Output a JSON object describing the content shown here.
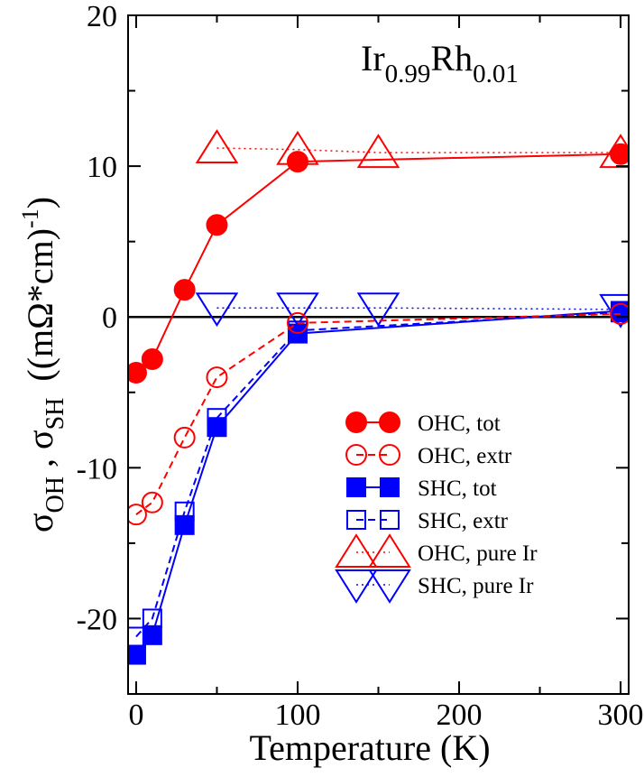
{
  "chart_data": {
    "type": "line",
    "title": "",
    "annotation": {
      "main": "Ir",
      "sub1": "0.99",
      "main2": "Rh",
      "sub2": "0.01"
    },
    "xlabel": "Temperature (K)",
    "ylabel": {
      "sigma1": "σ",
      "sub1": "OH",
      "comma": " , ",
      "sigma2": "σ",
      "sub2": "SH",
      "units": "((mΩ*cm)",
      "exp": "-1",
      "close": ")"
    },
    "xlim": [
      -5,
      305
    ],
    "ylim": [
      -25,
      20
    ],
    "x_ticks": [
      0,
      100,
      200,
      300
    ],
    "x_tick_labels": [
      "0",
      "100",
      "200",
      "300"
    ],
    "y_ticks": [
      -20,
      -10,
      0,
      10,
      20
    ],
    "y_tick_labels": [
      "-20",
      "-10",
      "0",
      "10",
      "20"
    ],
    "zero_line": 0,
    "legend_position": "center-right",
    "series": [
      {
        "name": "OHC, tot",
        "color": "#ff0000",
        "marker": "circle",
        "filled": true,
        "line": "solid",
        "x": [
          0,
          10,
          30,
          50,
          100,
          300
        ],
        "y": [
          -3.7,
          -2.8,
          1.8,
          6.1,
          10.3,
          10.8
        ]
      },
      {
        "name": "OHC, extr",
        "color": "#ff0000",
        "marker": "circle",
        "filled": false,
        "line": "dashed",
        "x": [
          0,
          10,
          30,
          50,
          100,
          300
        ],
        "y": [
          -13.1,
          -12.3,
          -8.0,
          -4.0,
          -0.4,
          0.2
        ]
      },
      {
        "name": "SHC,  tot",
        "color": "#0000ff",
        "marker": "square",
        "filled": true,
        "line": "solid",
        "x": [
          0,
          10,
          30,
          50,
          100,
          300
        ],
        "y": [
          -22.4,
          -21.1,
          -13.8,
          -7.3,
          -1.1,
          0.4
        ]
      },
      {
        "name": "SHC, extr",
        "color": "#0000ff",
        "marker": "square",
        "filled": false,
        "line": "dashed",
        "x": [
          0,
          10,
          30,
          50,
          100,
          300
        ],
        "y": [
          -21.2,
          -20.0,
          -12.9,
          -6.7,
          -0.9,
          0.3
        ]
      },
      {
        "name": "OHC, pure Ir",
        "color": "#ff0000",
        "marker": "triangle-up",
        "filled": false,
        "line": "dotted",
        "x": [
          50,
          100,
          150,
          300
        ],
        "y": [
          11.2,
          11.1,
          10.9,
          10.9
        ]
      },
      {
        "name": "SHC, pure Ir",
        "color": "#0000ff",
        "marker": "triangle-down",
        "filled": false,
        "line": "dotted",
        "x": [
          50,
          100,
          150,
          300
        ],
        "y": [
          0.6,
          0.6,
          0.6,
          0.5
        ]
      }
    ]
  }
}
